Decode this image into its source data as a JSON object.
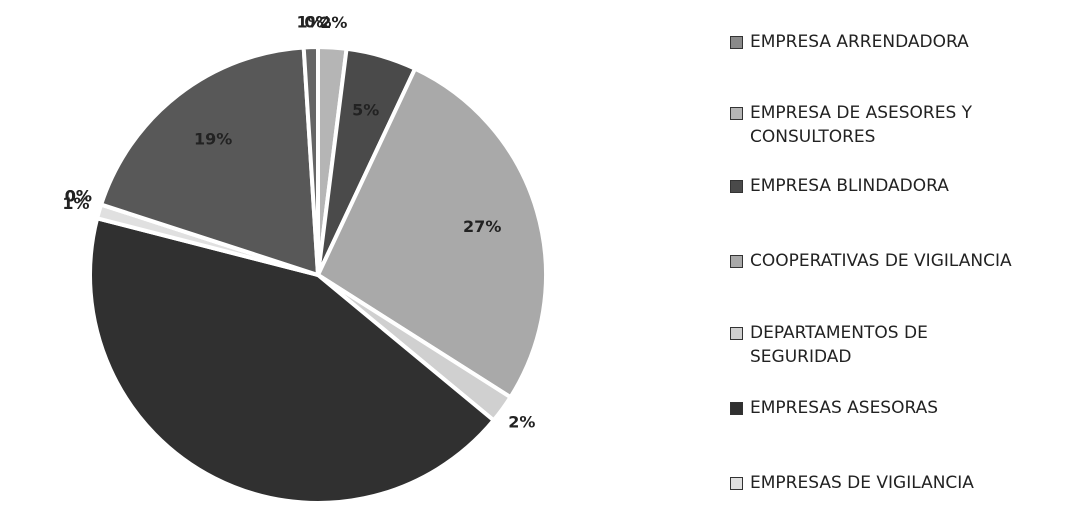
{
  "chart_data": {
    "type": "pie",
    "categories": [
      "EMPRESA ARRENDADORA",
      "EMPRESA DE ASESORES Y CONSULTORES",
      "EMPRESA BLINDADORA",
      "COOPERATIVAS DE VIGILANCIA",
      "DEPARTAMENTOS DE SEGURIDAD",
      "EMPRESAS ASESORAS",
      "EMPRESAS DE VIGILANCIA",
      null,
      null,
      null,
      null
    ],
    "values": [
      0,
      2,
      5,
      27,
      2,
      43,
      1,
      0,
      0,
      19,
      1
    ],
    "value_labels": [
      "0%",
      "2%",
      "5%",
      "27%",
      "2%",
      null,
      "1%",
      "0%",
      "0%",
      "19%",
      "1%"
    ],
    "colors": [
      "#8a8a8a",
      "#b5b5b5",
      "#4a4a4a",
      "#a9a9a9",
      "#d0d0d0",
      "#303030",
      "#e0e0e0",
      "#707070",
      "#3a3a3a",
      "#585858",
      "#666666"
    ]
  }
}
